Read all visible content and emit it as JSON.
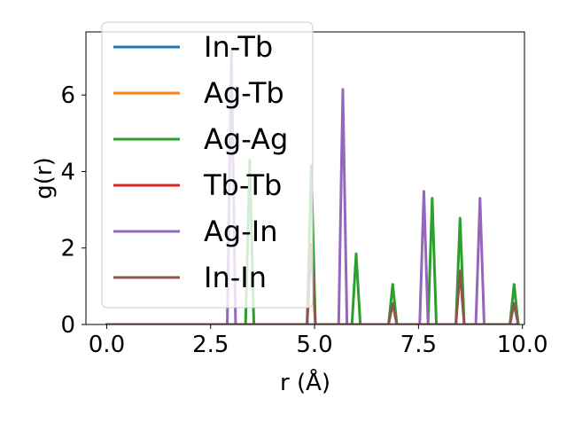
{
  "chart_data": {
    "type": "line",
    "xlabel": "r (Å)",
    "ylabel": "g(r)",
    "xlim": [
      -0.5,
      10.05
    ],
    "ylim": [
      0,
      7.65
    ],
    "xticks": [
      0.0,
      2.5,
      5.0,
      7.5,
      10.0
    ],
    "xtick_labels": [
      "0.0",
      "2.5",
      "5.0",
      "7.5",
      "10.0"
    ],
    "yticks": [
      0,
      2,
      4,
      6
    ],
    "ytick_labels": [
      "0",
      "2",
      "4",
      "6"
    ],
    "grid": false,
    "legend_position": "upper-left",
    "peak_half_width": 0.1,
    "x_range": [
      0,
      9.85
    ],
    "series": [
      {
        "name": "In-Tb",
        "color": "#1f77b4",
        "peaks": []
      },
      {
        "name": "Ag-Tb",
        "color": "#ff7f0e",
        "peaks": []
      },
      {
        "name": "Ag-Ag",
        "color": "#2ca02c",
        "peaks": [
          [
            3.44,
            4.3
          ],
          [
            4.92,
            4.15
          ],
          [
            6.0,
            1.85
          ],
          [
            6.88,
            1.05
          ],
          [
            7.83,
            3.3
          ],
          [
            8.5,
            2.78
          ],
          [
            9.8,
            1.05
          ]
        ]
      },
      {
        "name": "Tb-Tb",
        "color": "#d62728",
        "peaks": []
      },
      {
        "name": "Ag-In",
        "color": "#9467bd",
        "peaks": [
          [
            3.0,
            7.15
          ],
          [
            5.68,
            6.15
          ],
          [
            7.63,
            3.48
          ],
          [
            8.98,
            3.3
          ]
        ]
      },
      {
        "name": "In-In",
        "color": "#8c564b",
        "peaks": [
          [
            4.92,
            2.1
          ],
          [
            6.88,
            0.55
          ],
          [
            8.5,
            1.4
          ],
          [
            9.8,
            0.55
          ]
        ]
      }
    ]
  }
}
